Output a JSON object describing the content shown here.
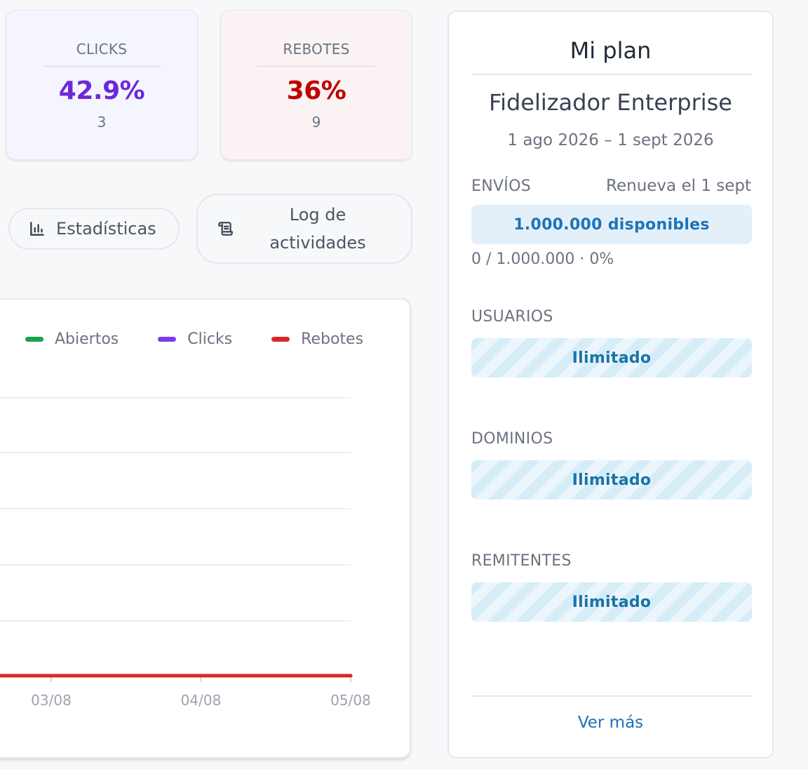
{
  "stats": {
    "clicks": {
      "label": "CLICKS",
      "percent": "42.9%",
      "count": "3"
    },
    "rebotes": {
      "label": "REBOTES",
      "percent": "36%",
      "count": "9"
    }
  },
  "actions": {
    "stats_label": "Estadísticas",
    "log_label_line1": "Log de",
    "log_label_line2": "actividades"
  },
  "chart_data": {
    "type": "line",
    "x": [
      "03/08",
      "04/08",
      "05/08"
    ],
    "series": [
      {
        "name": "Abiertos",
        "color": "#16a34a",
        "values": [
          0,
          0,
          0
        ]
      },
      {
        "name": "Clicks",
        "color": "#7c3aed",
        "values": [
          0,
          0,
          0
        ]
      },
      {
        "name": "Rebotes",
        "color": "#dc2626",
        "values": [
          0,
          0,
          0
        ]
      }
    ],
    "ylim": [
      0,
      5
    ],
    "grid": true,
    "legend": "top"
  },
  "plan": {
    "title": "Mi plan",
    "name": "Fidelizador Enterprise",
    "period": "1 ago 2026 – 1 sept 2026",
    "envios": {
      "label": "ENVÍOS",
      "renew": "Renueva el 1 sept",
      "available": "1.000.000 disponibles",
      "usage": "0 / 1.000.000 · 0%"
    },
    "usuarios": {
      "label": "USUARIOS",
      "value": "Ilimitado"
    },
    "dominios": {
      "label": "DOMINIOS",
      "value": "Ilimitado"
    },
    "remitentes": {
      "label": "REMITENTES",
      "value": "Ilimitado"
    },
    "more_link": "Ver más"
  },
  "icons": {
    "stats": "bar-chart-icon",
    "log": "scroll-icon"
  }
}
